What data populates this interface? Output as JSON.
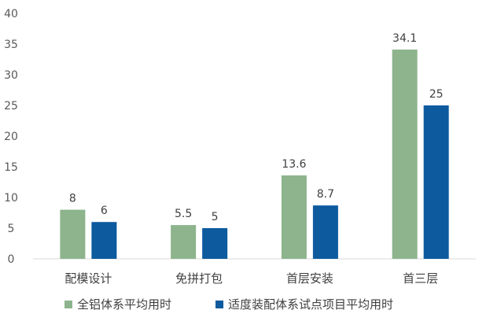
{
  "chart_data": {
    "type": "bar",
    "categories": [
      "配模设计",
      "免拼打包",
      "首层安装",
      "首三层"
    ],
    "series": [
      {
        "name": "全铝体系平均用时",
        "values": [
          8,
          5.5,
          13.6,
          34.1
        ],
        "color": "#8db48d"
      },
      {
        "name": "适度装配体系试点项目平均用时",
        "values": [
          6,
          5,
          8.7,
          25
        ],
        "color": "#0d5a9e"
      }
    ],
    "data_labels": [
      [
        "8",
        "5.5",
        "13.6",
        "34.1"
      ],
      [
        "6",
        "5",
        "8.7",
        "25"
      ]
    ],
    "y_ticks": [
      "0",
      "5",
      "10",
      "15",
      "20",
      "25",
      "30",
      "35",
      "40"
    ],
    "ylim": [
      0,
      40
    ],
    "title": "",
    "xlabel": "",
    "ylabel": "",
    "grid": false,
    "legend_position": "bottom"
  }
}
